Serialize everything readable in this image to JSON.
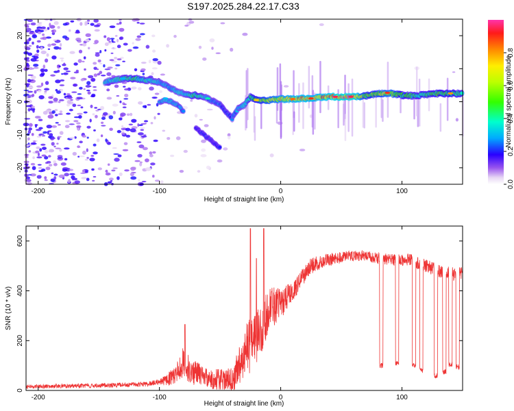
{
  "title": "S197.2025.284.22.17.C33",
  "chart_data": [
    {
      "type": "heatmap",
      "xlabel": "Height of straight line (km)",
      "ylabel": "Frequency (Hz)",
      "xlim": [
        -210,
        150
      ],
      "ylim": [
        -25,
        25
      ],
      "xticks": [
        -200,
        -100,
        0,
        100
      ],
      "yticks": [
        -20,
        -10,
        0,
        10,
        20
      ],
      "ridge": {
        "x": [
          -145,
          -130,
          -120,
          -110,
          -100,
          -95,
          -90,
          -85,
          -80,
          -75,
          -70,
          -65,
          -60,
          -55,
          -50,
          -45,
          -40,
          -35,
          -30,
          -25,
          -20,
          -10,
          0,
          10,
          20,
          30,
          40,
          50,
          60,
          70,
          80,
          90,
          100,
          110,
          120,
          130,
          140,
          150
        ],
        "freq": [
          6,
          7,
          7,
          6.5,
          6,
          5,
          4,
          3,
          2.5,
          2,
          2,
          1.5,
          1,
          0,
          -1,
          -3,
          -5,
          -2,
          -1,
          1.5,
          0.5,
          0.5,
          0.8,
          0.8,
          1,
          1.2,
          1.5,
          1.5,
          1.5,
          1.8,
          2.5,
          2.5,
          2,
          1.8,
          2.2,
          2.5,
          2.5,
          2.5
        ],
        "amplitude": [
          0.35,
          0.4,
          0.45,
          0.4,
          0.35,
          0.3,
          0.3,
          0.35,
          0.35,
          0.4,
          0.45,
          0.4,
          0.3,
          0.25,
          0.25,
          0.2,
          0.25,
          0.3,
          0.35,
          0.45,
          0.55,
          0.65,
          0.75,
          0.8,
          0.85,
          0.8,
          0.9,
          0.95,
          0.95,
          0.55,
          0.6,
          0.7,
          0.5,
          0.45,
          0.45,
          0.5,
          0.5,
          0.45
        ]
      },
      "branch": {
        "x": [
          -100,
          -95,
          -90,
          -85,
          -80
        ],
        "freq": [
          0,
          0.5,
          0,
          -1,
          -3
        ],
        "amplitude": [
          0.3,
          0.35,
          0.35,
          0.3,
          0.25
        ]
      },
      "lower_branch": {
        "x": [
          -70,
          -65,
          -60,
          -55,
          -50
        ],
        "freq": [
          -8,
          -9.5,
          -11,
          -12.5,
          -14
        ],
        "amplitude": [
          0.2,
          0.2,
          0.2,
          0.2,
          0.2
        ]
      }
    },
    {
      "type": "colorbar",
      "label": "Normalized spectral amplitude",
      "ylim": [
        0,
        1
      ],
      "ticks": [
        "0.0",
        "0.2",
        "0.4",
        "0.6",
        "0.8"
      ],
      "tick_values": [
        0,
        0.2,
        0.4,
        0.6,
        0.8
      ]
    },
    {
      "type": "line",
      "xlabel": "Height of straight line (km)",
      "ylabel": "SNR (10 * v/v)",
      "xlim": [
        -210,
        150
      ],
      "ylim": [
        0,
        660
      ],
      "xticks": [
        -200,
        -100,
        0,
        100
      ],
      "yticks": [
        0,
        200,
        400,
        600
      ],
      "color": "#ee3333",
      "envelope": {
        "x": [
          -210,
          -150,
          -110,
          -95,
          -85,
          -80,
          -75,
          -70,
          -65,
          -60,
          -55,
          -45,
          -40,
          -35,
          -30,
          -25,
          -20,
          -15,
          -10,
          -5,
          0,
          5,
          10,
          15,
          20,
          25,
          30,
          40,
          50,
          60,
          70,
          80,
          90,
          100,
          110,
          120,
          130,
          140,
          150
        ],
        "snr": [
          15,
          20,
          25,
          40,
          70,
          120,
          80,
          70,
          60,
          50,
          40,
          35,
          40,
          80,
          150,
          180,
          220,
          260,
          320,
          340,
          350,
          370,
          400,
          430,
          470,
          500,
          510,
          525,
          535,
          540,
          540,
          530,
          525,
          525,
          520,
          500,
          480,
          470,
          470
        ]
      },
      "amplitude_noise": {
        "x": [
          -210,
          -100,
          -80,
          -60,
          -40,
          -25,
          -10,
          10,
          30,
          60,
          100,
          150
        ],
        "snr": [
          8,
          10,
          60,
          40,
          60,
          120,
          90,
          40,
          30,
          20,
          25,
          30
        ]
      },
      "spikes": [
        {
          "x": -79,
          "snr": 265
        },
        {
          "x": -25,
          "snr": 650
        },
        {
          "x": -20,
          "snr": 530
        },
        {
          "x": -14,
          "snr": 650
        }
      ],
      "dips": [
        {
          "x": 83,
          "snr": 100
        },
        {
          "x": 96,
          "snr": 110
        },
        {
          "x": 110,
          "snr": 100
        },
        {
          "x": 116,
          "snr": 80
        },
        {
          "x": 128,
          "snr": 60
        },
        {
          "x": 135,
          "snr": 75
        },
        {
          "x": 140,
          "snr": 105
        },
        {
          "x": 146,
          "snr": 95
        }
      ]
    }
  ]
}
